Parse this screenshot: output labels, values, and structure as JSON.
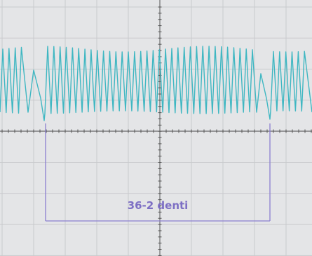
{
  "annotation": {
    "label": "36-2 denti"
  }
}
